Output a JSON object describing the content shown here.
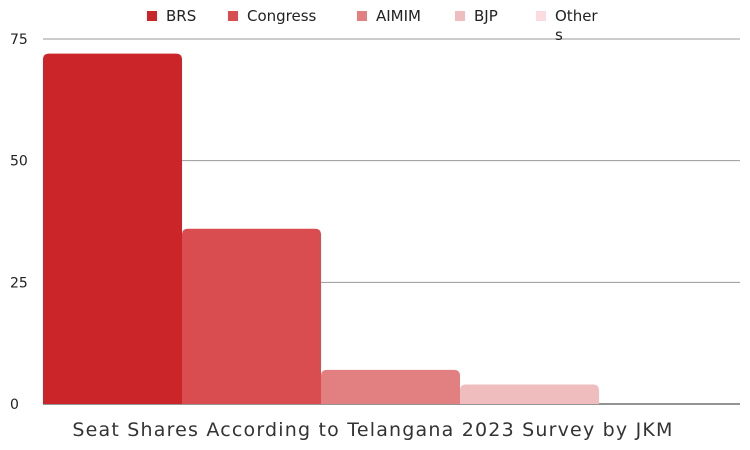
{
  "chart_data": {
    "type": "bar",
    "title": "Seat Shares According to Telangana 2023 Survey by JKM",
    "categories": [
      "BRS",
      "Congress",
      "AIMIM",
      "BJP",
      "Others"
    ],
    "values": [
      72,
      36,
      7,
      4,
      0
    ],
    "colors": [
      "#cc2529",
      "#d94c50",
      "#e27f80",
      "#efbdbd",
      "#f8dcdf"
    ],
    "ylim": [
      0,
      75
    ],
    "yticks": [
      0,
      25,
      50,
      75
    ],
    "ytick_labels": [
      "0",
      "25",
      "50",
      "75"
    ],
    "grid": true,
    "legend": {
      "position": "top",
      "entries": [
        "BRS",
        "Congress",
        "AIMIM",
        "BJP",
        "Others"
      ]
    }
  }
}
